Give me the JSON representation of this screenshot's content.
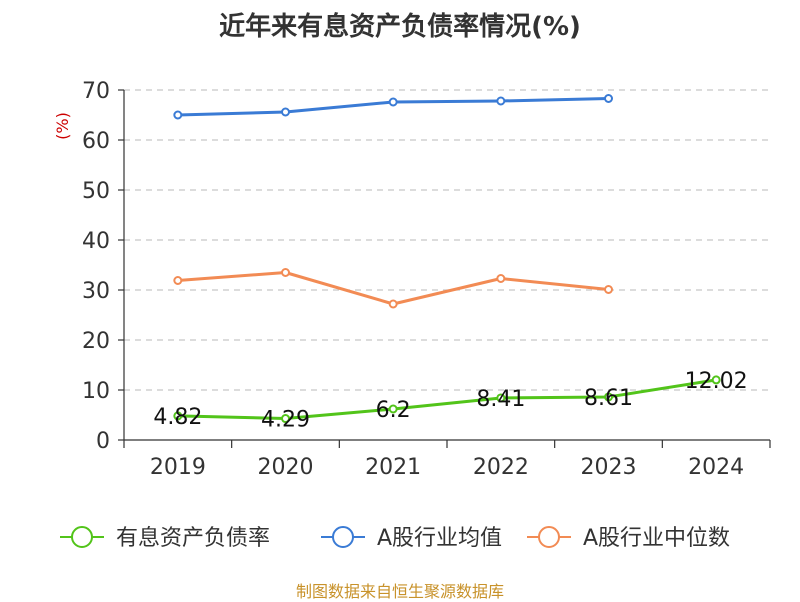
{
  "chart_data": {
    "type": "line",
    "title": "近年来有息资产负债率情况(%)",
    "ylabel": "(%)",
    "xlabel": "",
    "ylim": [
      0,
      70
    ],
    "yticks": [
      0,
      10,
      20,
      30,
      40,
      50,
      60,
      70
    ],
    "grid": true,
    "legend_position": "bottom",
    "categories": [
      "2019",
      "2020",
      "2021",
      "2022",
      "2023",
      "2024"
    ],
    "series": [
      {
        "name": "有息资产负债率",
        "color": "#52c41a",
        "values": [
          4.82,
          4.29,
          6.2,
          8.41,
          8.61,
          12.02
        ],
        "labels": [
          "4.82",
          "4.29",
          "6.2",
          "8.41",
          "8.61",
          "12.02"
        ]
      },
      {
        "name": "A股行业均值",
        "color": "#3a7bd5",
        "values": [
          65.0,
          65.6,
          67.6,
          67.8,
          68.3,
          null
        ]
      },
      {
        "name": "A股行业中位数",
        "color": "#f28b54",
        "values": [
          31.9,
          33.5,
          27.2,
          32.3,
          30.1,
          null
        ]
      }
    ]
  },
  "source": "制图数据来自恒生聚源数据库"
}
